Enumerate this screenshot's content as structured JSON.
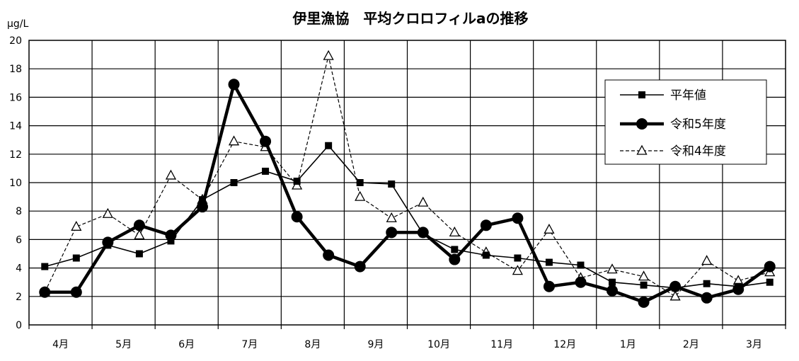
{
  "chart_data": {
    "type": "line",
    "title": "伊里漁協　平均クロロフィルaの推移",
    "ylabel": "μg/L",
    "xlabel": "",
    "ylim": [
      0,
      20
    ],
    "yticks": [
      0,
      2,
      4,
      6,
      8,
      10,
      12,
      14,
      16,
      18,
      20
    ],
    "grid": true,
    "legend_position": "top-right",
    "months": [
      "4月",
      "5月",
      "6月",
      "7月",
      "8月",
      "9月",
      "10月",
      "11月",
      "12月",
      "1月",
      "2月",
      "3月"
    ],
    "series": [
      {
        "name": "平年値",
        "style": "thin-solid-square",
        "color": "#000000",
        "points": [
          [
            0.25,
            4.1
          ],
          [
            0.75,
            4.7
          ],
          [
            1.25,
            5.6
          ],
          [
            1.75,
            5.0
          ],
          [
            2.25,
            5.9
          ],
          [
            2.75,
            8.8
          ],
          [
            3.25,
            10.0
          ],
          [
            3.75,
            10.8
          ],
          [
            4.25,
            10.1
          ],
          [
            4.75,
            12.6
          ],
          [
            5.25,
            10.0
          ],
          [
            5.75,
            9.9
          ],
          [
            6.25,
            6.4
          ],
          [
            6.75,
            5.3
          ],
          [
            7.25,
            4.9
          ],
          [
            7.75,
            4.7
          ],
          [
            8.25,
            4.4
          ],
          [
            8.75,
            4.2
          ],
          [
            9.25,
            3.0
          ],
          [
            9.75,
            2.8
          ],
          [
            10.25,
            2.6
          ],
          [
            10.75,
            2.9
          ],
          [
            11.25,
            2.7
          ],
          [
            11.75,
            3.0
          ]
        ]
      },
      {
        "name": "令和5年度",
        "style": "thick-solid-circle",
        "color": "#000000",
        "points": [
          [
            0.25,
            2.3
          ],
          [
            0.75,
            2.3
          ],
          [
            1.25,
            5.8
          ],
          [
            1.75,
            7.0
          ],
          [
            2.25,
            6.3
          ],
          [
            2.75,
            8.3
          ],
          [
            3.25,
            16.9
          ],
          [
            3.75,
            12.9
          ],
          [
            4.25,
            7.6
          ],
          [
            4.75,
            4.9
          ],
          [
            5.25,
            4.1
          ],
          [
            5.75,
            6.5
          ],
          [
            6.25,
            6.5
          ],
          [
            6.75,
            4.6
          ],
          [
            7.25,
            7.0
          ],
          [
            7.75,
            7.5
          ],
          [
            8.25,
            2.7
          ],
          [
            8.75,
            3.0
          ],
          [
            9.25,
            2.4
          ],
          [
            9.75,
            1.6
          ],
          [
            10.25,
            2.7
          ],
          [
            10.75,
            1.9
          ],
          [
            11.25,
            2.5
          ],
          [
            11.75,
            4.1
          ]
        ]
      },
      {
        "name": "令和4年度",
        "style": "dashed-triangle",
        "color": "#000000",
        "points": [
          [
            0.25,
            2.3
          ],
          [
            0.75,
            6.9
          ],
          [
            1.25,
            7.8
          ],
          [
            1.75,
            6.3
          ],
          [
            2.25,
            10.5
          ],
          [
            2.75,
            8.8
          ],
          [
            3.25,
            12.9
          ],
          [
            3.75,
            12.5
          ],
          [
            4.25,
            9.8
          ],
          [
            4.75,
            18.9
          ],
          [
            5.25,
            9.0
          ],
          [
            5.75,
            7.5
          ],
          [
            6.25,
            8.6
          ],
          [
            6.75,
            6.5
          ],
          [
            7.25,
            5.1
          ],
          [
            7.75,
            3.8
          ],
          [
            8.25,
            6.7
          ],
          [
            8.75,
            3.3
          ],
          [
            9.25,
            3.9
          ],
          [
            9.75,
            3.4
          ],
          [
            10.25,
            2.0
          ],
          [
            10.75,
            4.5
          ],
          [
            11.25,
            3.1
          ],
          [
            11.75,
            3.7
          ]
        ]
      }
    ]
  }
}
